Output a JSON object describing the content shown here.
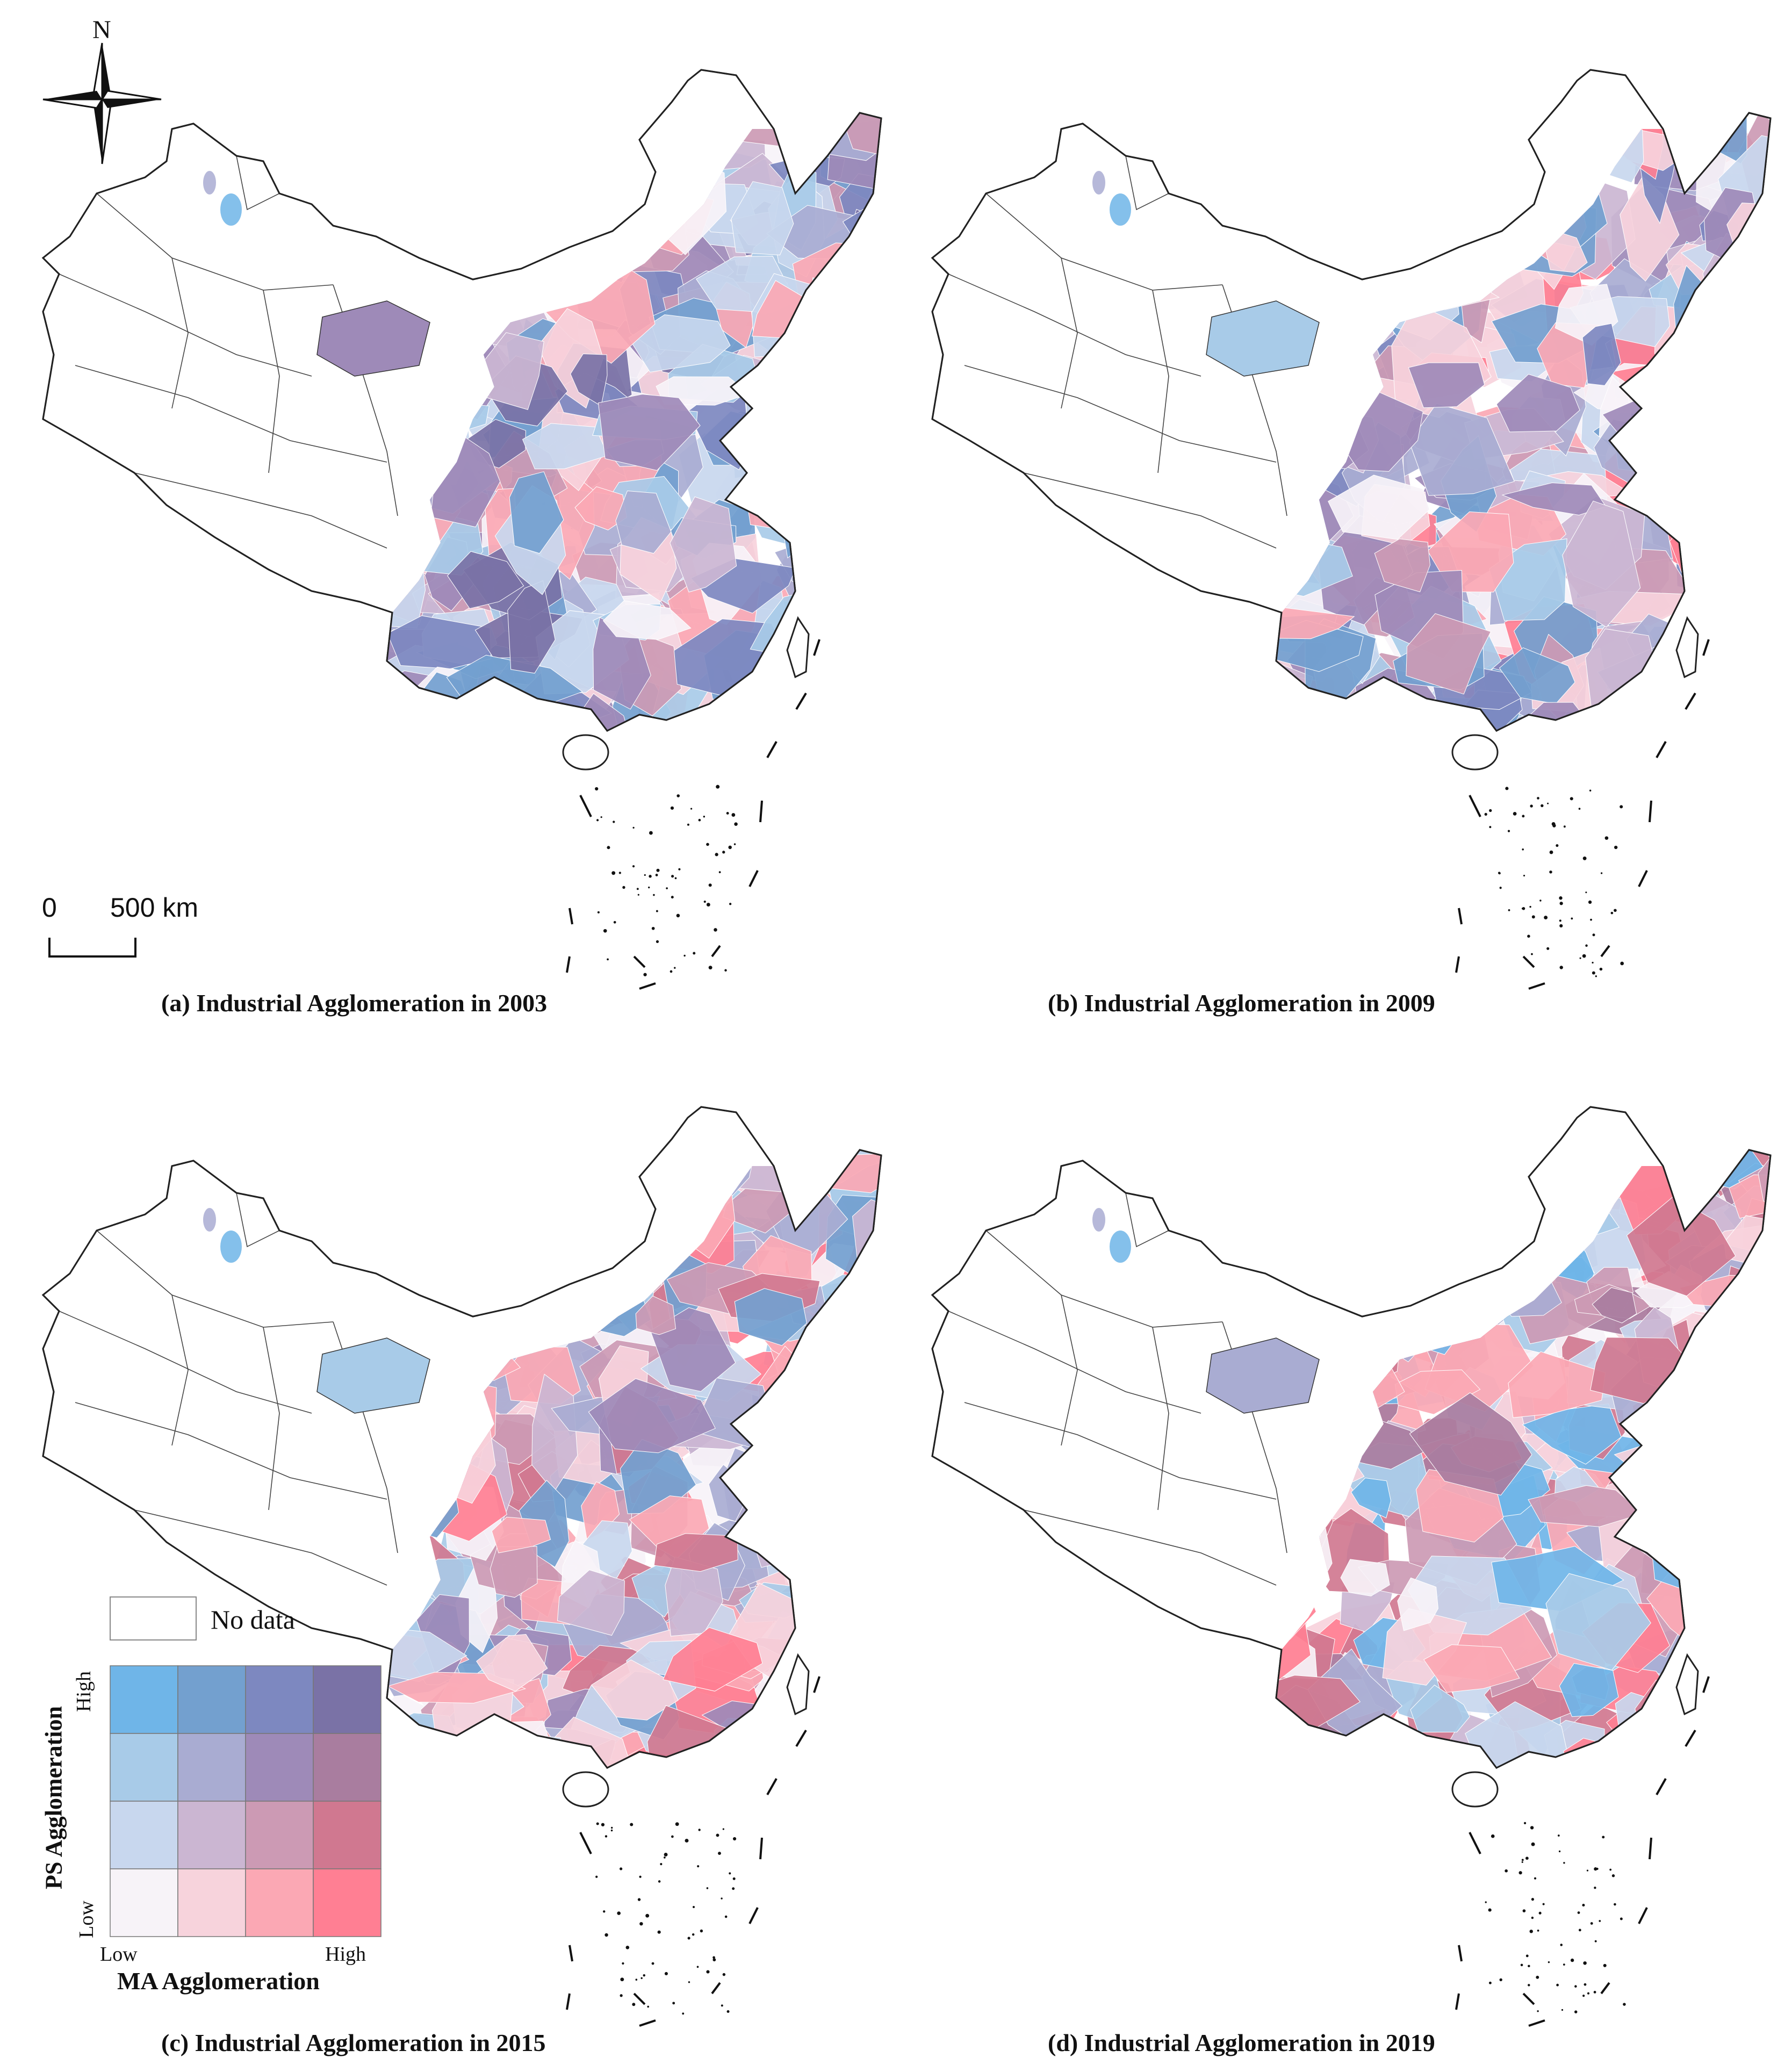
{
  "north_arrow": {
    "label": "N"
  },
  "scale_bar": {
    "zero": "0",
    "distance": "500 km"
  },
  "panels": [
    {
      "caption": "(a) Industrial Agglomeration in 2003"
    },
    {
      "caption": "(b) Industrial Agglomeration in 2009"
    },
    {
      "caption": "(c) Industrial Agglomeration in 2015"
    },
    {
      "caption": "(d) Industrial Agglomeration in 2019"
    }
  ],
  "legend": {
    "no_data": "No data",
    "y_title": "PS Agglomeration",
    "y_low": "Low",
    "y_high": "High",
    "x_title": "MA Agglomeration",
    "x_low": "Low",
    "x_high": "High",
    "matrix": [
      [
        "#6fb5e8",
        "#73a0cf",
        "#7d88c0",
        "#7a72a6"
      ],
      [
        "#a8cbe8",
        "#a9acd2",
        "#9e8ab8",
        "#a97d9f"
      ],
      [
        "#c8d7ee",
        "#cbb6d2",
        "#cc9ab4",
        "#d07890"
      ],
      [
        "#f7f3f8",
        "#f7d3dc",
        "#fba8b4",
        "#ff7f93"
      ]
    ]
  }
}
